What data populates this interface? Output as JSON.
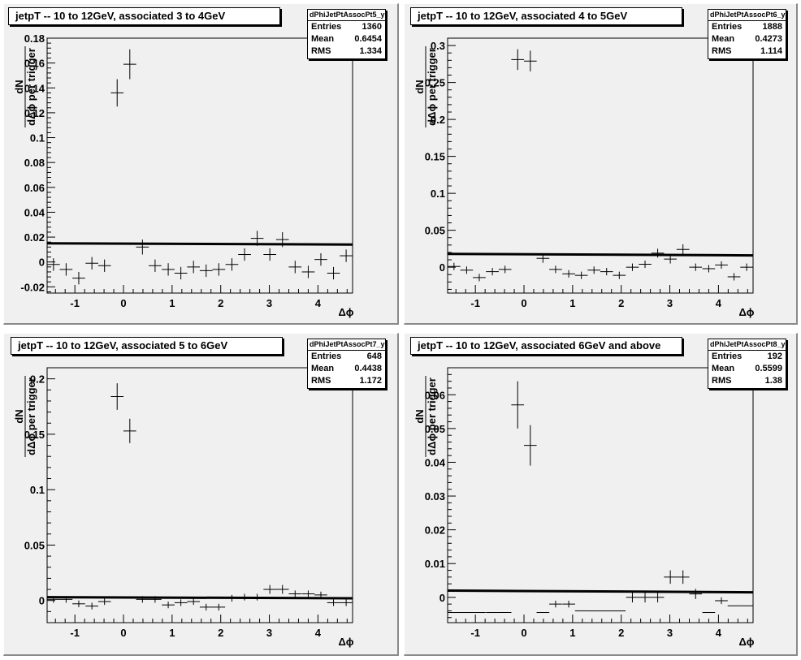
{
  "chart_data": [
    {
      "type": "scatter",
      "title": "jetpT -- 10 to 12GeV, associated 3 to 4GeV",
      "xlabel": "Δϕ",
      "ylabel_top": "dN",
      "ylabel_bottom": "dΔϕ per trigger",
      "xlim": [
        -1.571,
        4.712
      ],
      "ylim": [
        -0.025,
        0.18
      ],
      "xticks": [
        -1,
        0,
        1,
        2,
        3,
        4
      ],
      "yticks": [
        -0.02,
        0,
        0.02,
        0.04,
        0.06,
        0.08,
        0.1,
        0.12,
        0.14,
        0.16,
        0.18
      ],
      "ytick_labels": [
        "-0.02",
        "0",
        "0.02",
        "0.04",
        "0.06",
        "0.08",
        "0.1",
        "0.12",
        "0.14",
        "0.16",
        "0.18"
      ],
      "fit_line": [
        0.015,
        0.014
      ],
      "stats": {
        "name": "dPhiJetPtAssocPt5_y",
        "rows": [
          [
            "Entries",
            "1360"
          ],
          [
            "Mean",
            "0.6454"
          ],
          [
            "RMS",
            "1.334"
          ]
        ]
      },
      "x": [
        -1.44,
        -1.18,
        -0.92,
        -0.65,
        -0.39,
        -0.13,
        0.13,
        0.39,
        0.65,
        0.92,
        1.18,
        1.44,
        1.7,
        1.96,
        2.23,
        2.49,
        2.75,
        3.01,
        3.27,
        3.53,
        3.8,
        4.06,
        4.32,
        4.58
      ],
      "y": [
        -0.002,
        -0.006,
        -0.013,
        -0.001,
        -0.003,
        0.136,
        0.159,
        0.012,
        -0.003,
        -0.006,
        -0.009,
        -0.004,
        -0.007,
        -0.006,
        -0.002,
        0.006,
        0.019,
        0.006,
        0.018,
        -0.004,
        -0.008,
        0.002,
        -0.009,
        0.005
      ],
      "yerr": [
        0.005,
        0.005,
        0.005,
        0.005,
        0.005,
        0.011,
        0.012,
        0.006,
        0.005,
        0.005,
        0.005,
        0.005,
        0.005,
        0.005,
        0.005,
        0.005,
        0.006,
        0.005,
        0.006,
        0.005,
        0.005,
        0.005,
        0.005,
        0.005
      ]
    },
    {
      "type": "scatter",
      "title": "jetpT -- 10 to 12GeV, associated 4 to 5GeV",
      "xlabel": "Δϕ",
      "ylabel_top": "dN",
      "ylabel_bottom": "dΔϕ per trigger",
      "xlim": [
        -1.571,
        4.712
      ],
      "ylim": [
        -0.035,
        0.31
      ],
      "xticks": [
        -1,
        0,
        1,
        2,
        3,
        4
      ],
      "yticks": [
        0,
        0.05,
        0.1,
        0.15,
        0.2,
        0.25,
        0.3
      ],
      "ytick_labels": [
        "0",
        "0.05",
        "0.1",
        "0.15",
        "0.2",
        "0.25",
        "0.3"
      ],
      "fit_line": [
        0.018,
        0.016
      ],
      "stats": {
        "name": "dPhiJetPtAssocPt6_y",
        "rows": [
          [
            "Entries",
            "1888"
          ],
          [
            "Mean",
            "0.4273"
          ],
          [
            "RMS",
            "1.114"
          ]
        ]
      },
      "x": [
        -1.44,
        -1.18,
        -0.92,
        -0.65,
        -0.39,
        -0.13,
        0.13,
        0.39,
        0.65,
        0.92,
        1.18,
        1.44,
        1.7,
        1.96,
        2.23,
        2.49,
        2.75,
        3.01,
        3.27,
        3.53,
        3.8,
        4.06,
        4.32,
        4.58
      ],
      "y": [
        0.001,
        -0.004,
        -0.014,
        -0.006,
        -0.003,
        0.281,
        0.279,
        0.012,
        -0.003,
        -0.009,
        -0.011,
        -0.004,
        -0.006,
        -0.011,
        0.0,
        0.004,
        0.019,
        0.011,
        0.024,
        0.0,
        -0.002,
        0.003,
        -0.013,
        0.0
      ],
      "yerr": [
        0.005,
        0.005,
        0.005,
        0.005,
        0.005,
        0.014,
        0.014,
        0.006,
        0.005,
        0.005,
        0.005,
        0.005,
        0.005,
        0.005,
        0.005,
        0.005,
        0.006,
        0.006,
        0.007,
        0.005,
        0.005,
        0.005,
        0.005,
        0.005
      ]
    },
    {
      "type": "scatter",
      "title": "jetpT -- 10 to 12GeV, associated 5 to 6GeV",
      "xlabel": "Δϕ",
      "ylabel_top": "dN",
      "ylabel_bottom": "dΔϕ per trigger",
      "xlim": [
        -1.571,
        4.712
      ],
      "ylim": [
        -0.02,
        0.21
      ],
      "xticks": [
        -1,
        0,
        1,
        2,
        3,
        4
      ],
      "yticks": [
        0,
        0.05,
        0.1,
        0.15,
        0.2
      ],
      "ytick_labels": [
        "0",
        "0.05",
        "0.1",
        "0.15",
        "0.2"
      ],
      "fit_line": [
        0.003,
        0.002
      ],
      "stats": {
        "name": "dPhiJetPtAssocPt7_y",
        "rows": [
          [
            "Entries",
            "648"
          ],
          [
            "Mean",
            "0.4438"
          ],
          [
            "RMS",
            "1.172"
          ]
        ]
      },
      "x": [
        -1.44,
        -1.18,
        -0.92,
        -0.65,
        -0.39,
        -0.13,
        0.13,
        0.39,
        0.65,
        0.92,
        1.18,
        1.44,
        1.7,
        1.96,
        2.23,
        2.49,
        2.75,
        3.01,
        3.27,
        3.53,
        3.8,
        4.06,
        4.32,
        4.58
      ],
      "y": [
        0.001,
        0.001,
        -0.003,
        -0.005,
        -0.001,
        0.184,
        0.153,
        0.001,
        0.001,
        -0.004,
        -0.002,
        -0.001,
        -0.006,
        -0.006,
        0.002,
        0.003,
        0.003,
        0.01,
        0.01,
        0.006,
        0.006,
        0.005,
        -0.002,
        -0.002
      ],
      "yerr": [
        0.003,
        0.003,
        0.003,
        0.003,
        0.003,
        0.012,
        0.011,
        0.003,
        0.003,
        0.003,
        0.003,
        0.003,
        0.003,
        0.003,
        0.003,
        0.003,
        0.003,
        0.004,
        0.004,
        0.003,
        0.003,
        0.003,
        0.003,
        0.003
      ]
    },
    {
      "type": "scatter",
      "title": "jetpT -- 10 to 12GeV, associated 6GeV and above",
      "xlabel": "Δϕ",
      "ylabel_top": "dN",
      "ylabel_bottom": "dΔϕ per trigger",
      "xlim": [
        -1.571,
        4.712
      ],
      "ylim": [
        -0.0075,
        0.068
      ],
      "xticks": [
        -1,
        0,
        1,
        2,
        3,
        4
      ],
      "yticks": [
        0,
        0.01,
        0.02,
        0.03,
        0.04,
        0.05,
        0.06
      ],
      "ytick_labels": [
        "0",
        "0.01",
        "0.02",
        "0.03",
        "0.04",
        "0.05",
        "0.06"
      ],
      "fit_line": [
        0.002,
        0.0015
      ],
      "stats": {
        "name": "dPhiJetPtAssocPt8_y",
        "rows": [
          [
            "Entries",
            "192"
          ],
          [
            "Mean",
            "0.5599"
          ],
          [
            "RMS",
            "1.38"
          ]
        ]
      },
      "x": [
        -1.44,
        -1.18,
        -0.92,
        -0.65,
        -0.39,
        -0.13,
        0.13,
        0.39,
        0.65,
        0.92,
        1.18,
        1.44,
        1.7,
        1.96,
        2.23,
        2.49,
        2.75,
        3.01,
        3.27,
        3.53,
        3.8,
        4.06,
        4.32,
        4.58
      ],
      "y": [
        -0.0045,
        -0.0045,
        -0.0045,
        -0.0045,
        -0.0045,
        0.057,
        0.045,
        -0.0045,
        -0.002,
        -0.002,
        -0.004,
        -0.004,
        -0.004,
        -0.004,
        0.0,
        0.0,
        0.0,
        0.006,
        0.006,
        0.001,
        -0.0045,
        -0.001,
        -0.0025,
        -0.0025
      ],
      "yerr": [
        0.0,
        0.0,
        0.0,
        0.0,
        0.0,
        0.007,
        0.006,
        0.0,
        0.001,
        0.001,
        0.0,
        0.0,
        0.0,
        0.0,
        0.0015,
        0.0015,
        0.0015,
        0.002,
        0.002,
        0.0015,
        0.0,
        0.001,
        0.0,
        0.0
      ]
    }
  ]
}
